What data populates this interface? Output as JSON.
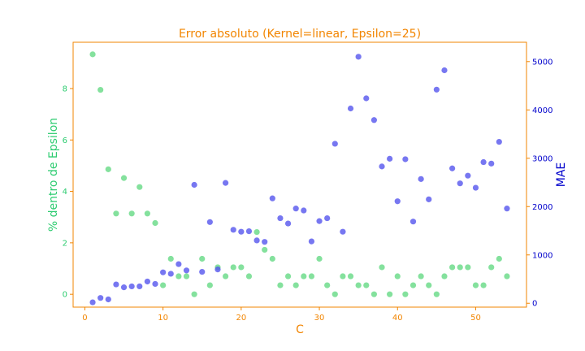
{
  "chart_data": {
    "type": "scatter",
    "title": "Error absoluto (Kernel=linear, Epsilon=25)",
    "xlabel": "C",
    "ylabel_left": "% dentro de Epsilon",
    "ylabel_right": "MAE",
    "xlim": [
      -1.5,
      56.5
    ],
    "ylim_left": [
      -0.5,
      9.8
    ],
    "ylim_right": [
      -80,
      5400
    ],
    "xticks": [
      0,
      10,
      20,
      30,
      40,
      50
    ],
    "yticks_left": [
      0,
      2,
      4,
      6,
      8
    ],
    "yticks_right": [
      0,
      1000,
      2000,
      3000,
      4000,
      5000
    ],
    "grid": false,
    "colors": {
      "title": "#f28500",
      "frame": "#f28500",
      "left_axis_label": "#2ecc71",
      "right_axis_label": "#0000cc",
      "pct_series": "#6fdc8c",
      "mae_series": "#5555ee"
    },
    "series": [
      {
        "axis": "left",
        "x": [
          1,
          2,
          3,
          4,
          5,
          6,
          7,
          8,
          9,
          10,
          11,
          12,
          13,
          14,
          15,
          16,
          17,
          18,
          19,
          20,
          21,
          22,
          23,
          24,
          25,
          26,
          27,
          28,
          29,
          30,
          31,
          32,
          33,
          34,
          35,
          36,
          37,
          38,
          39,
          40,
          41,
          42,
          43,
          44,
          45,
          46,
          47,
          48,
          49,
          50,
          51,
          52,
          53,
          54
        ],
        "values": [
          9.33,
          7.95,
          4.86,
          3.14,
          4.52,
          3.14,
          4.17,
          3.14,
          2.77,
          0.35,
          1.38,
          0.7,
          0.7,
          0.0,
          1.38,
          0.35,
          1.05,
          0.7,
          1.05,
          1.05,
          0.7,
          2.42,
          1.73,
          1.38,
          0.35,
          0.7,
          0.35,
          0.7,
          0.7,
          1.38,
          0.35,
          0.0,
          0.7,
          0.7,
          0.35,
          0.35,
          0.0,
          1.05,
          0.0,
          0.7,
          0.0,
          0.35,
          0.7,
          0.35,
          0.0,
          0.7,
          1.05,
          1.05,
          1.05,
          0.35,
          0.35,
          1.05,
          1.38,
          0.7
        ]
      },
      {
        "axis": "right",
        "x": [
          1,
          2,
          3,
          4,
          5,
          6,
          7,
          8,
          9,
          10,
          11,
          12,
          13,
          14,
          15,
          16,
          17,
          18,
          19,
          20,
          21,
          22,
          23,
          24,
          25,
          26,
          27,
          28,
          29,
          30,
          31,
          32,
          33,
          34,
          35,
          36,
          37,
          38,
          39,
          40,
          41,
          42,
          43,
          44,
          45,
          46,
          47,
          48,
          49,
          50,
          51,
          52,
          53,
          54
        ],
        "values": [
          20,
          110,
          80,
          390,
          330,
          350,
          350,
          450,
          400,
          640,
          610,
          810,
          680,
          2450,
          650,
          1680,
          700,
          2490,
          1520,
          1480,
          1490,
          1300,
          1270,
          2170,
          1760,
          1650,
          1960,
          1920,
          1280,
          1700,
          1760,
          3300,
          1480,
          4030,
          5100,
          4240,
          3790,
          2830,
          2990,
          2110,
          2980,
          1690,
          2570,
          2150,
          4420,
          4820,
          2790,
          2480,
          2640,
          2390,
          2920,
          2890,
          3340,
          1960
        ]
      }
    ]
  }
}
